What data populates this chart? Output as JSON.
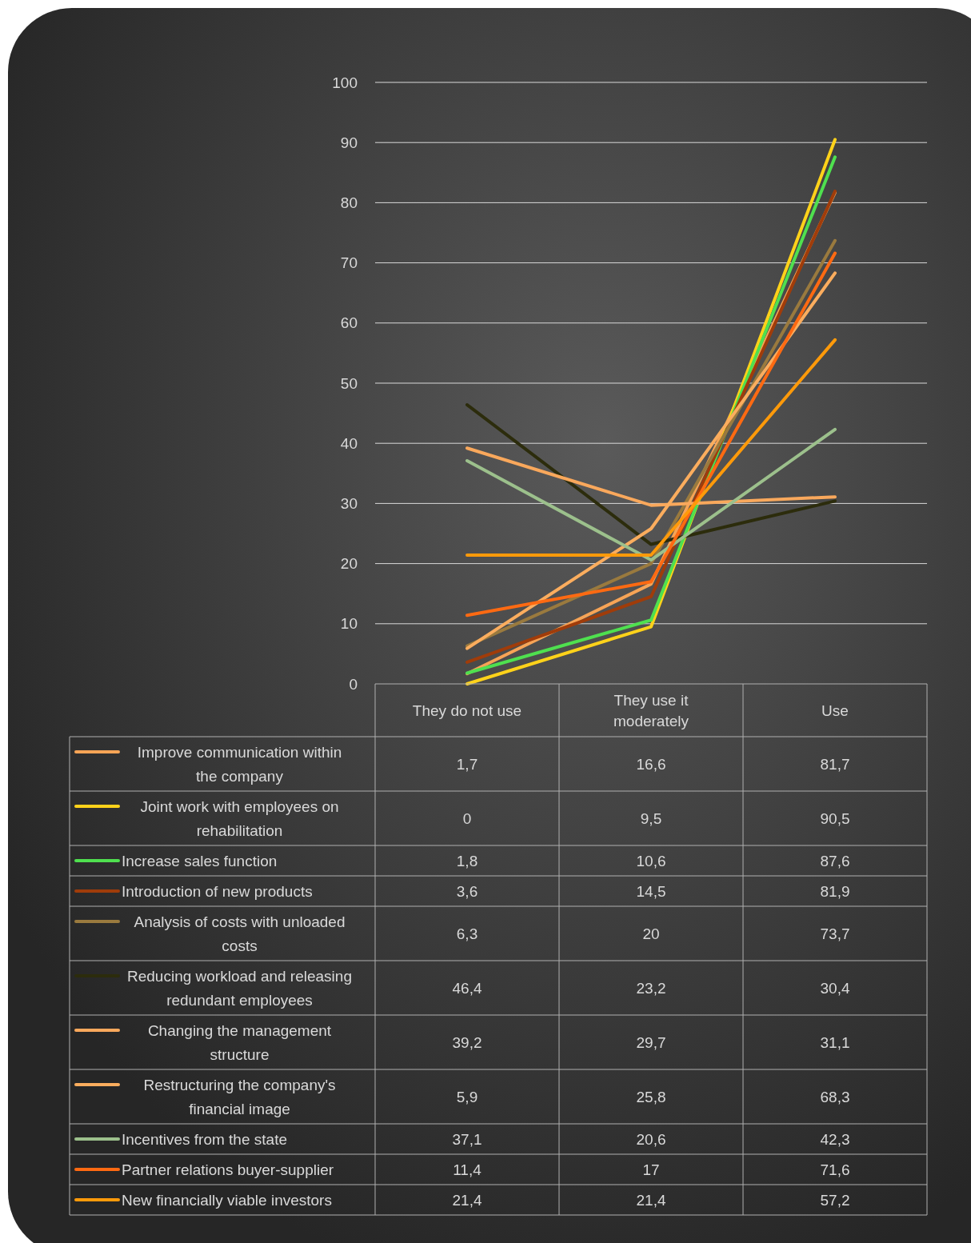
{
  "chart_data": {
    "type": "line",
    "categories": [
      "They do not use",
      "They use it moderately",
      "Use"
    ],
    "ylim": [
      0,
      100
    ],
    "yticks": [
      0,
      10,
      20,
      30,
      40,
      50,
      60,
      70,
      80,
      90,
      100
    ],
    "grid": "y",
    "legend": "bottom",
    "series": [
      {
        "name": "Improve communication within the company",
        "color": "#f7a456",
        "values": [
          1.7,
          16.6,
          81.7
        ],
        "value_labels": [
          "1,7",
          "16,6",
          "81,7"
        ]
      },
      {
        "name": "Joint work with employees on rehabilitation",
        "color": "#ffd21a",
        "values": [
          0,
          9.5,
          90.5
        ],
        "value_labels": [
          "0",
          "9,5",
          "90,5"
        ]
      },
      {
        "name": "Increase sales function",
        "color": "#4fe04f",
        "values": [
          1.8,
          10.6,
          87.6
        ],
        "value_labels": [
          "1,8",
          "10,6",
          "87,6"
        ]
      },
      {
        "name": "Introduction of new products",
        "color": "#a03c0a",
        "values": [
          3.6,
          14.5,
          81.9
        ],
        "value_labels": [
          "3,6",
          "14,5",
          "81,9"
        ]
      },
      {
        "name": "Analysis of costs with unloaded costs",
        "color": "#9a7a3e",
        "values": [
          6.3,
          20,
          73.7
        ],
        "value_labels": [
          "6,3",
          "20",
          "73,7"
        ]
      },
      {
        "name": "Reducing workload and releasing redundant employees",
        "color": "#2c2c0c",
        "values": [
          46.4,
          23.2,
          30.4
        ],
        "value_labels": [
          "46,4",
          "23,2",
          "30,4"
        ]
      },
      {
        "name": "Changing the management structure",
        "color": "#f9a85c",
        "values": [
          39.2,
          29.7,
          31.1
        ],
        "value_labels": [
          "39,2",
          "29,7",
          "31,1"
        ]
      },
      {
        "name": "Restructuring the company's financial image",
        "color": "#fbad5e",
        "values": [
          5.9,
          25.8,
          68.3
        ],
        "value_labels": [
          "5,9",
          "25,8",
          "68,3"
        ]
      },
      {
        "name": "Incentives from the state",
        "color": "#9cc08c",
        "values": [
          37.1,
          20.6,
          42.3
        ],
        "value_labels": [
          "37,1",
          "20,6",
          "42,3"
        ]
      },
      {
        "name": "Partner relations buyer-supplier",
        "color": "#ff6a12",
        "values": [
          11.4,
          17,
          71.6
        ],
        "value_labels": [
          "11,4",
          "17",
          "71,6"
        ]
      },
      {
        "name": "New financially viable investors",
        "color": "#ff9a0a",
        "values": [
          21.4,
          21.4,
          57.2
        ],
        "value_labels": [
          "21,4",
          "21,4",
          "57,2"
        ]
      }
    ]
  }
}
